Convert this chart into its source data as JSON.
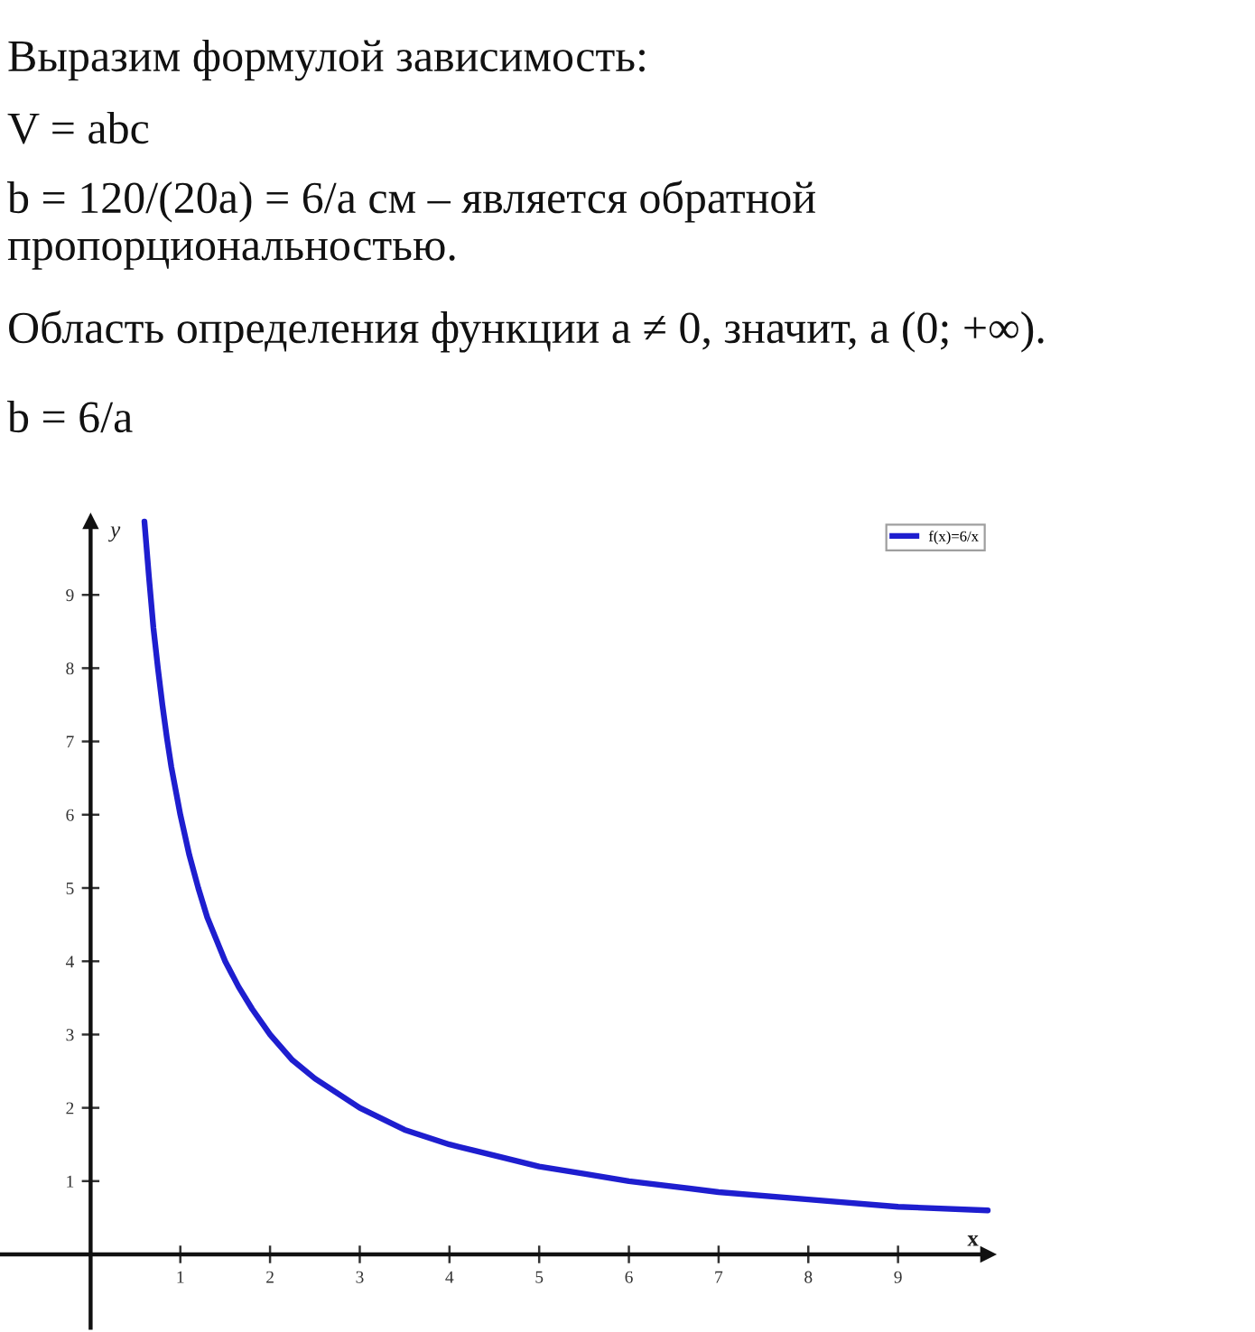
{
  "chart_data": {
    "type": "line",
    "annotations": [
      "Выразим формулой зависимость:",
      "V = abc",
      "b = 120/(20a) = 6/a см – является обратной пропорциональностью.",
      "Область определения функции a ≠ 0, значит, a (0; +∞).",
      "b = 6/a"
    ],
    "xlabel": "x",
    "ylabel": "y",
    "x": [
      0.6,
      0.65,
      0.7,
      0.75,
      0.8,
      0.85,
      0.9,
      1,
      1.1,
      1.2,
      1.3,
      1.4,
      1.5,
      1.65,
      1.8,
      2,
      2.25,
      2.5,
      2.75,
      3,
      3.5,
      4,
      4.5,
      5,
      5.5,
      6,
      7,
      8,
      9,
      10
    ],
    "series": [
      {
        "name": "f(x)=6/x",
        "color": "#1e1ecf",
        "values": [
          10,
          9.25,
          8.55,
          8,
          7.5,
          7.05,
          6.65,
          6,
          5.45,
          5,
          4.6,
          4.3,
          4,
          3.65,
          3.35,
          3,
          2.65,
          2.4,
          2.2,
          2,
          1.7,
          1.5,
          1.35,
          1.2,
          1.1,
          1,
          0.85,
          0.75,
          0.65,
          0.6
        ]
      }
    ],
    "xlim": [
      -1,
      10
    ],
    "ylim": [
      -1,
      10
    ],
    "xticks": [
      1,
      2,
      3,
      4,
      5,
      6,
      7,
      8,
      9
    ],
    "yticks": [
      1,
      2,
      3,
      4,
      5,
      6,
      7,
      8,
      9
    ],
    "legend": "top right",
    "grid": false
  }
}
